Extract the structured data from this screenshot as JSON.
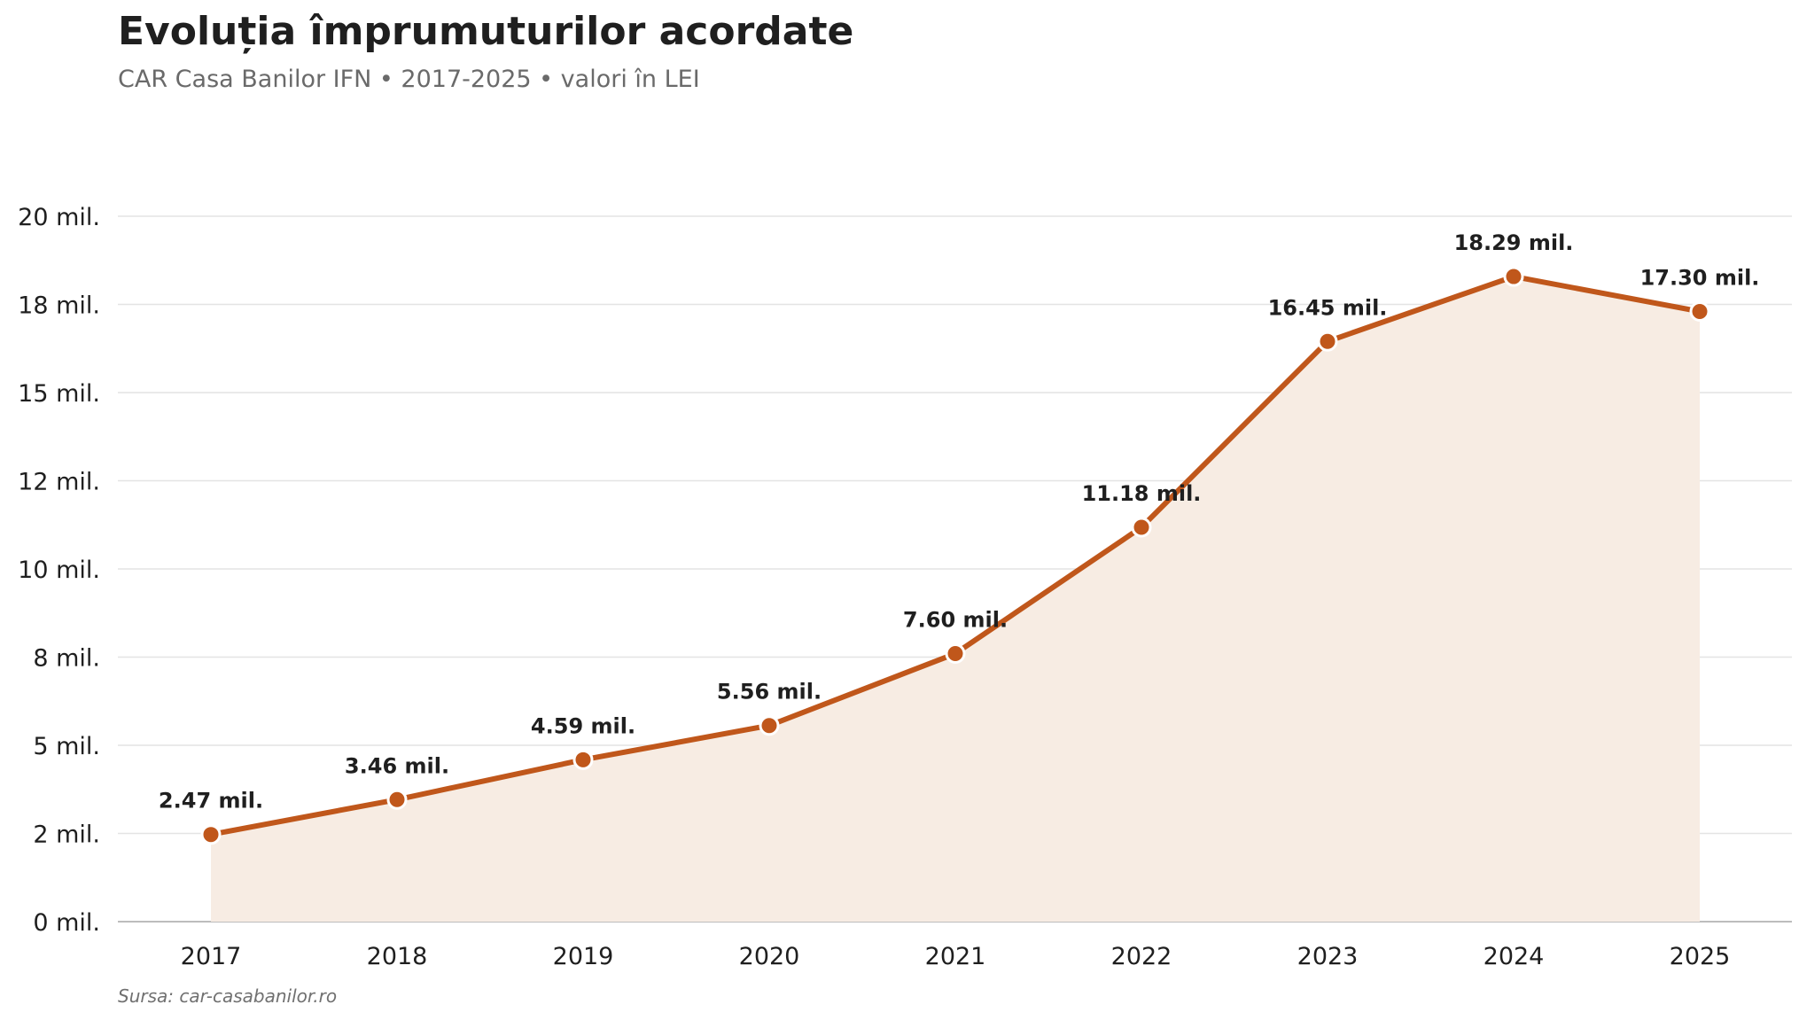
{
  "header": {
    "title": "Evoluția împrumuturilor acordate",
    "subtitle": "CAR Casa Banilor IFN  •  2017-2025  •  valori în LEI"
  },
  "footer": {
    "source": "Sursa: car-casabanilor.ro"
  },
  "colors": {
    "line": "#c0571b",
    "area": "#f7ece3",
    "grid": "#e4e4e4",
    "axis": "#bdbdbd",
    "marker_stroke": "#ffffff"
  },
  "chart_data": {
    "type": "area",
    "title": "Evoluția împrumuturilor acordate",
    "subtitle": "CAR Casa Banilor IFN  •  2017-2025  •  valori în LEI",
    "xlabel": "",
    "ylabel": "",
    "categories": [
      "2017",
      "2018",
      "2019",
      "2020",
      "2021",
      "2022",
      "2023",
      "2024",
      "2025"
    ],
    "series": [
      {
        "values": [
          2.47,
          3.46,
          4.59,
          5.56,
          7.6,
          11.18,
          16.45,
          18.29,
          17.3
        ],
        "labels": [
          "2.47 mil.",
          "3.46 mil.",
          "4.59 mil.",
          "5.56 mil.",
          "7.60 mil.",
          "11.18 mil.",
          "16.45 mil.",
          "18.29 mil.",
          "17.30 mil."
        ]
      }
    ],
    "ylim": [
      0,
      20
    ],
    "y_ticks": [
      0,
      2.5,
      5,
      7.5,
      10,
      12.5,
      15,
      17.5,
      20
    ],
    "y_tick_labels": [
      "0 mil.",
      "2 mil.",
      "5 mil.",
      "8 mil.",
      "10 mil.",
      "12 mil.",
      "15 mil.",
      "18 mil.",
      "20 mil."
    ],
    "grid": true,
    "legend": "none"
  }
}
